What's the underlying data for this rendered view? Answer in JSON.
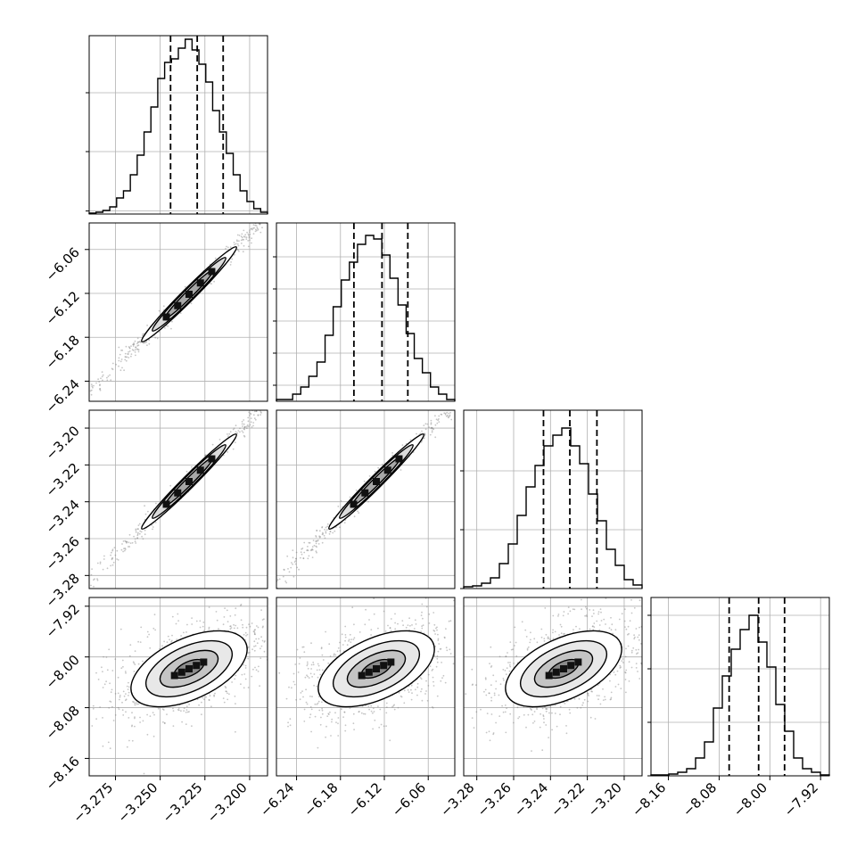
{
  "chart_data": {
    "type": "corner",
    "title": "",
    "params": [
      {
        "label": "",
        "ticks": [
          -3.275,
          -3.25,
          -3.225,
          -3.2
        ],
        "tick_labels": [
          "−3.275",
          "−3.250",
          "−3.225",
          "−3.200"
        ],
        "range": [
          -3.2897,
          -3.19
        ],
        "hist": [
          0.005,
          0.01,
          0.02,
          0.04,
          0.09,
          0.13,
          0.22,
          0.33,
          0.46,
          0.6,
          0.76,
          0.85,
          0.87,
          0.93,
          0.98,
          0.92,
          0.84,
          0.74,
          0.58,
          0.46,
          0.34,
          0.22,
          0.13,
          0.07,
          0.03,
          0.01
        ],
        "quantiles": [
          -3.2442,
          -3.2293,
          -3.2148
        ],
        "diag_yticks": [
          0.017,
          0.35,
          0.68
        ]
      },
      {
        "label": "",
        "ticks": [
          -6.24,
          -6.18,
          -6.12,
          -6.06
        ],
        "tick_labels": [
          "−6.24",
          "−6.18",
          "−6.12",
          "−6.06"
        ],
        "range": [
          -6.2675,
          -6.0237
        ],
        "hist": [
          0.01,
          0.01,
          0.04,
          0.08,
          0.14,
          0.22,
          0.37,
          0.53,
          0.68,
          0.78,
          0.88,
          0.93,
          0.91,
          0.82,
          0.69,
          0.54,
          0.38,
          0.24,
          0.16,
          0.08,
          0.04,
          0.01
        ],
        "quantiles": [
          -6.1616,
          -6.1232,
          -6.0879
        ],
        "diag_yticks": [
          0.09,
          0.27,
          0.45,
          0.63,
          0.81
        ]
      },
      {
        "label": "",
        "ticks": [
          -3.28,
          -3.26,
          -3.24,
          -3.22,
          -3.2
        ],
        "tick_labels": [
          "−3.28",
          "−3.26",
          "−3.24",
          "−3.22",
          "−3.20"
        ],
        "range": [
          -3.2871,
          -3.1903
        ],
        "hist": [
          0.01,
          0.015,
          0.03,
          0.06,
          0.14,
          0.25,
          0.41,
          0.57,
          0.69,
          0.8,
          0.86,
          0.9,
          0.8,
          0.7,
          0.53,
          0.38,
          0.22,
          0.13,
          0.05,
          0.02
        ],
        "quantiles": [
          -3.2438,
          -3.2295,
          -3.2148
        ],
        "diag_yticks": [
          0.0,
          0.33,
          0.66
        ]
      },
      {
        "label": "",
        "ticks": [
          -8.16,
          -8.08,
          -8.0,
          -7.92
        ],
        "tick_labels": [
          "−8.16",
          "−8.08",
          "−8.00",
          "−7.92"
        ],
        "range": [
          -8.1875,
          -7.9062
        ],
        "hist": [
          0.005,
          0.005,
          0.01,
          0.02,
          0.04,
          0.1,
          0.19,
          0.38,
          0.56,
          0.71,
          0.82,
          0.9,
          0.75,
          0.61,
          0.4,
          0.25,
          0.1,
          0.04,
          0.02,
          0.005
        ],
        "quantiles": [
          -8.0642,
          -8.0177,
          -7.9768
        ],
        "diag_yticks": [
          0.0,
          0.3,
          0.6,
          0.9
        ]
      }
    ],
    "pairs": [
      {
        "row": 1,
        "col": 0,
        "spread": 0.04
      },
      {
        "row": 2,
        "col": 0,
        "spread": 0.035
      },
      {
        "row": 2,
        "col": 1,
        "spread": 0.045
      },
      {
        "row": 3,
        "col": 0,
        "spread": 0.12
      },
      {
        "row": 3,
        "col": 1,
        "spread": 0.13
      },
      {
        "row": 3,
        "col": 2,
        "spread": 0.12
      }
    ],
    "grid": true
  }
}
